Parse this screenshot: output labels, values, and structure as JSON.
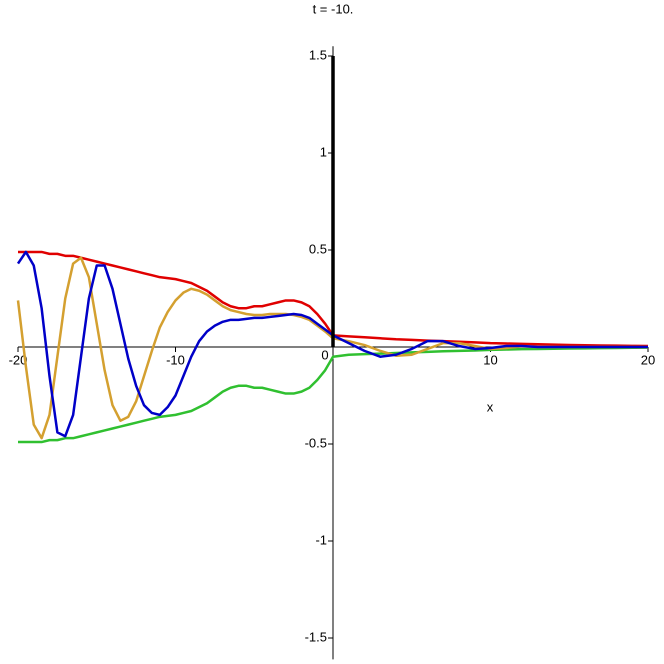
{
  "chart_data": {
    "type": "line",
    "title": "t = -10.",
    "x_label": "x",
    "x": [
      -20,
      -19.5,
      -19,
      -18.5,
      -18,
      -17.5,
      -17,
      -16.5,
      -16,
      -15.5,
      -15,
      -14.5,
      -14,
      -13.5,
      -13,
      -12.5,
      -12,
      -11.5,
      -11,
      -10.5,
      -10,
      -9.5,
      -9,
      -8.5,
      -8,
      -7.5,
      -7,
      -6.5,
      -6,
      -5.5,
      -5,
      -4.5,
      -4,
      -3.5,
      -3,
      -2.5,
      -2,
      -1.5,
      -1,
      -0.5,
      0,
      1,
      2,
      3,
      4,
      5,
      6,
      7,
      8,
      9,
      10,
      11,
      12,
      13,
      14,
      15,
      16,
      17,
      18,
      19,
      20
    ],
    "series": [
      {
        "color": "#e00000",
        "values": [
          0.49,
          0.49,
          0.49,
          0.49,
          0.48,
          0.48,
          0.47,
          0.47,
          0.46,
          0.45,
          0.44,
          0.43,
          0.42,
          0.41,
          0.4,
          0.39,
          0.38,
          0.37,
          0.36,
          0.355,
          0.35,
          0.34,
          0.33,
          0.31,
          0.29,
          0.26,
          0.23,
          0.21,
          0.2,
          0.2,
          0.21,
          0.21,
          0.22,
          0.23,
          0.24,
          0.24,
          0.23,
          0.21,
          0.17,
          0.12,
          0.06,
          0.055,
          0.05,
          0.045,
          0.04,
          0.037,
          0.033,
          0.03,
          0.027,
          0.024,
          0.02,
          0.018,
          0.016,
          0.014,
          0.012,
          0.01,
          0.009,
          0.008,
          0.007,
          0.006,
          0.005
        ]
      },
      {
        "color": "#30c030",
        "values": [
          -0.49,
          -0.49,
          -0.49,
          -0.49,
          -0.48,
          -0.48,
          -0.47,
          -0.47,
          -0.46,
          -0.45,
          -0.44,
          -0.43,
          -0.42,
          -0.41,
          -0.4,
          -0.39,
          -0.38,
          -0.37,
          -0.36,
          -0.355,
          -0.35,
          -0.34,
          -0.33,
          -0.31,
          -0.29,
          -0.26,
          -0.23,
          -0.21,
          -0.2,
          -0.2,
          -0.21,
          -0.21,
          -0.22,
          -0.23,
          -0.24,
          -0.24,
          -0.23,
          -0.21,
          -0.17,
          -0.12,
          -0.05,
          -0.04,
          -0.037,
          -0.034,
          -0.031,
          -0.028,
          -0.025,
          -0.022,
          -0.02,
          -0.018,
          -0.015,
          -0.013,
          -0.011,
          -0.01,
          -0.009,
          -0.008,
          -0.007,
          -0.006,
          -0.005,
          -0.004,
          -0.003
        ]
      },
      {
        "color": "#d4a030",
        "values": [
          0.24,
          -0.1,
          -0.4,
          -0.47,
          -0.35,
          -0.05,
          0.25,
          0.43,
          0.46,
          0.36,
          0.12,
          -0.12,
          -0.3,
          -0.38,
          -0.36,
          -0.28,
          -0.15,
          -0.02,
          0.1,
          0.18,
          0.24,
          0.28,
          0.3,
          0.29,
          0.27,
          0.24,
          0.21,
          0.19,
          0.18,
          0.17,
          0.165,
          0.165,
          0.17,
          0.17,
          0.17,
          0.165,
          0.155,
          0.14,
          0.11,
          0.08,
          0.045,
          0.03,
          0.01,
          -0.02,
          -0.045,
          -0.04,
          -0.01,
          0.02,
          0.02,
          0.005,
          -0.01,
          -0.005,
          0.003,
          0,
          0,
          0,
          0,
          0,
          0,
          0,
          0
        ]
      },
      {
        "color": "#0000c8",
        "values": [
          0.43,
          0.49,
          0.42,
          0.2,
          -0.15,
          -0.44,
          -0.46,
          -0.35,
          -0.05,
          0.25,
          0.42,
          0.42,
          0.3,
          0.12,
          -0.06,
          -0.2,
          -0.3,
          -0.34,
          -0.35,
          -0.31,
          -0.25,
          -0.15,
          -0.05,
          0.03,
          0.08,
          0.11,
          0.13,
          0.14,
          0.14,
          0.145,
          0.15,
          0.15,
          0.155,
          0.16,
          0.165,
          0.17,
          0.165,
          0.15,
          0.12,
          0.09,
          0.06,
          0.02,
          -0.02,
          -0.05,
          -0.04,
          -0.01,
          0.03,
          0.03,
          0.005,
          -0.01,
          -0.005,
          0.005,
          0.005,
          0,
          0,
          0,
          0,
          0,
          0,
          0,
          0
        ]
      },
      {
        "color": "#000000",
        "x": [
          0,
          0
        ],
        "values": [
          0,
          1.5
        ]
      }
    ],
    "xlim": [
      -20,
      20
    ],
    "ylim": [
      -1.61,
      1.55
    ],
    "xticks": [
      -20,
      -10,
      0,
      10,
      20
    ],
    "yticks": [
      -1.5,
      -1,
      -0.5,
      0.5,
      1,
      1.5
    ]
  }
}
